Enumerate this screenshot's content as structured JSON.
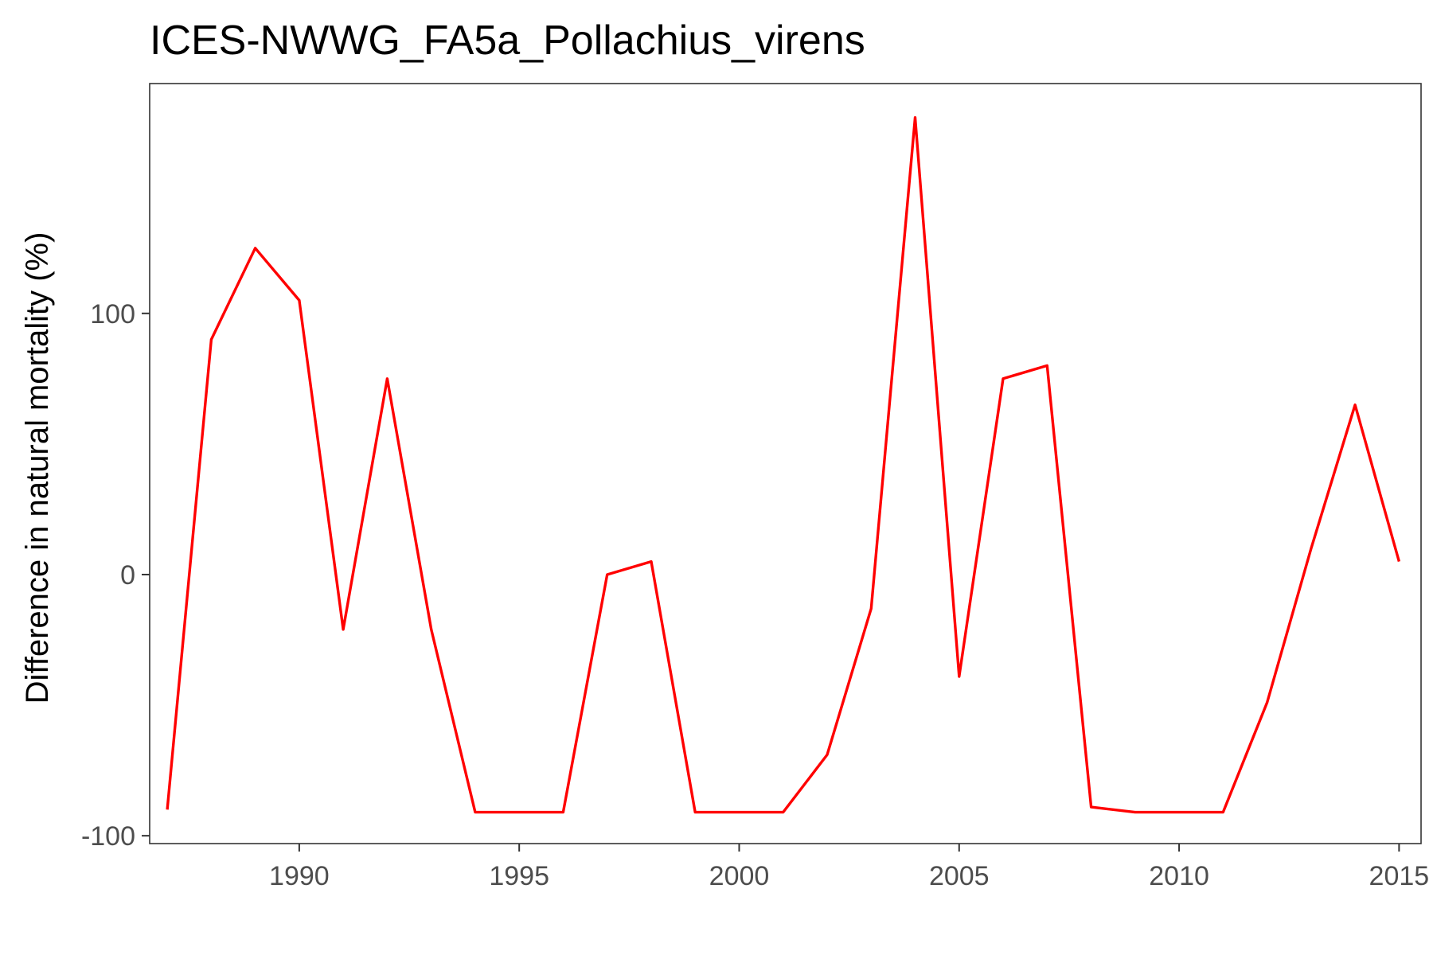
{
  "chart_data": {
    "type": "line",
    "title": "ICES-NWWG_FA5a_Pollachius_virens",
    "xlabel": "",
    "ylabel": "Difference in natural mortality (%)",
    "xlim": [
      1986.6,
      2015.5
    ],
    "ylim": [
      -103,
      188
    ],
    "x_ticks": [
      1990,
      1995,
      2000,
      2005,
      2010,
      2015
    ],
    "y_ticks": [
      -100,
      0,
      100
    ],
    "grid": false,
    "legend": "none",
    "series": [
      {
        "color": "#ff0000",
        "x": [
          1987,
          1988,
          1989,
          1990,
          1991,
          1992,
          1993,
          1994,
          1995,
          1996,
          1997,
          1998,
          1999,
          2000,
          2001,
          2002,
          2003,
          2004,
          2005,
          2006,
          2007,
          2008,
          2009,
          2010,
          2011,
          2012,
          2013,
          2014,
          2015
        ],
        "y": [
          -90,
          90,
          125,
          105,
          -21,
          75,
          -21,
          -91,
          -91,
          -91,
          0,
          5,
          -91,
          -91,
          -91,
          -69,
          -13,
          175,
          -39,
          75,
          80,
          -89,
          -91,
          -91,
          -91,
          -49,
          10,
          65,
          5
        ]
      }
    ]
  }
}
